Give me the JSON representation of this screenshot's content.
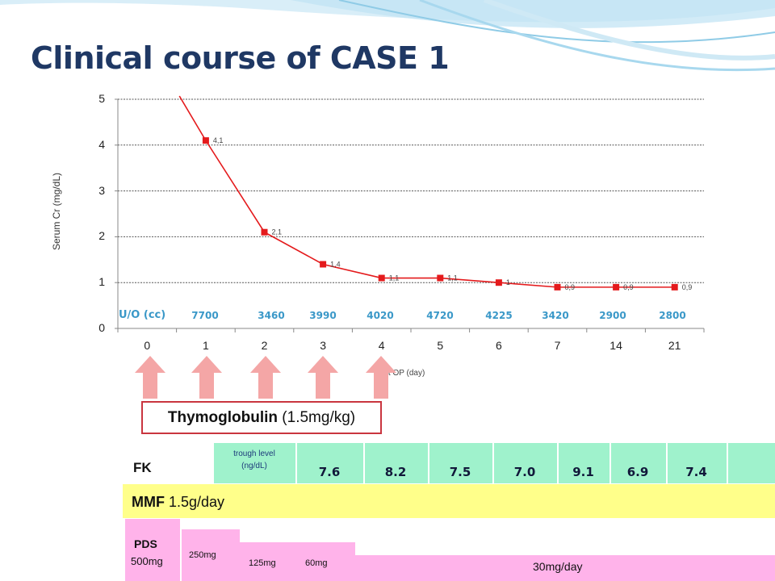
{
  "slide": {
    "title": "Clinical course of CASE 1"
  },
  "chart_data": {
    "type": "line",
    "ylabel": "Serum Cr (mg/dL)",
    "xlabel": "Post OP (day)",
    "categories": [
      "0",
      "1",
      "2",
      "3",
      "4",
      "5",
      "6",
      "7",
      "14",
      "21"
    ],
    "values": [
      null,
      4.1,
      2.1,
      1.4,
      1.1,
      1.1,
      1,
      0.9,
      0.9,
      0.9
    ],
    "data_labels": [
      "",
      "4.1",
      "2.1",
      "1.4",
      "1.1",
      "1.1",
      "1",
      "0.9",
      "0.9",
      "0.9"
    ],
    "ylim": [
      0,
      5
    ],
    "yticks": [
      "0",
      "1",
      "2",
      "3",
      "4",
      "5"
    ],
    "grid": true,
    "line_color": "#e41a1c",
    "uo_row": {
      "label": "U/O (cc)",
      "values": [
        "7700",
        "3460",
        "3990",
        "4020",
        "4720",
        "4225",
        "3420",
        "2900",
        "2800"
      ]
    }
  },
  "therapy": {
    "thymoglobulin_name": "Thymoglobulin",
    "thymoglobulin_dose": " (1.5mg/kg)",
    "arrow_days": [
      "0",
      "1",
      "2",
      "3",
      "4"
    ],
    "fk_label": "FK",
    "fk_trough_label_1": "trough level",
    "fk_trough_label_2": "(ng/dL)",
    "fk_values": [
      "7.6",
      "8.2",
      "7.5",
      "7.0",
      "9.1",
      "6.9",
      "7.4"
    ],
    "mmf_name": "MMF",
    "mmf_dose": " 1.5g/day",
    "pds_label": "PDS",
    "pds_doses": [
      "500mg",
      "250mg",
      "125mg",
      "60mg",
      "30mg/day"
    ]
  },
  "colors": {
    "title": "#1f3864",
    "uo_text": "#3a98c8",
    "fk_band": "#9ff2cc",
    "mmf_band": "#ffff8a",
    "pds_band": "#ffb3ea",
    "arrow": "#f4a6a6",
    "thymo_border": "#c9353f"
  }
}
